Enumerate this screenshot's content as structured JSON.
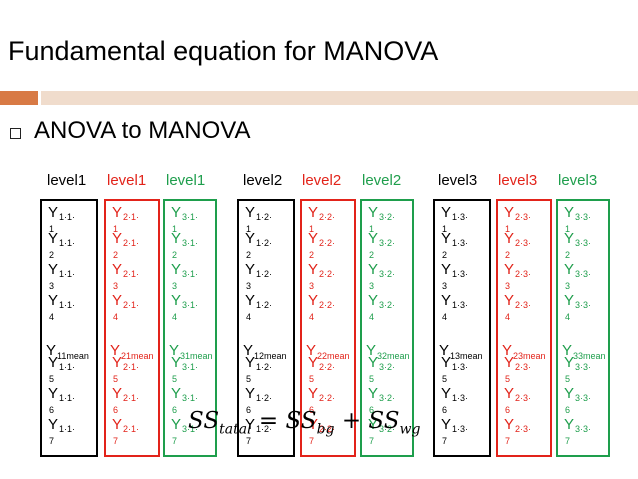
{
  "title": "Fundamental equation for MANOVA",
  "bullet": "ANOVA to MANOVA",
  "colors": {
    "black": "#000000",
    "red": "#e2231a",
    "green": "#1e9e4c",
    "accent_bar": "#d87a45",
    "light_bar": "#f0dccc"
  },
  "columns": [
    {
      "label": "level1",
      "color": "black",
      "y": "Y",
      "sub": "1·1·",
      "mean_sub": "11mean"
    },
    {
      "label": "level1",
      "color": "red",
      "y": "Y",
      "sub": "2·1·",
      "mean_sub": "21mean"
    },
    {
      "label": "level1",
      "color": "green",
      "y": "Y",
      "sub": "3·1·",
      "mean_sub": "31mean"
    },
    {
      "label": "level2",
      "color": "black",
      "y": "Y",
      "sub": "1·2·",
      "mean_sub": "12mean"
    },
    {
      "label": "level2",
      "color": "red",
      "y": "Y",
      "sub": "2·2·",
      "mean_sub": "22mean"
    },
    {
      "label": "level2",
      "color": "green",
      "y": "Y",
      "sub": "3·2·",
      "mean_sub": "32mean"
    },
    {
      "label": "level3",
      "color": "black",
      "y": "Y",
      "sub": "1·3·",
      "mean_sub": "13mean"
    },
    {
      "label": "level3",
      "color": "red",
      "y": "Y",
      "sub": "2·3·",
      "mean_sub": "23mean"
    },
    {
      "label": "level3",
      "color": "green",
      "y": "Y",
      "sub": "3·3·",
      "mean_sub": "33mean"
    }
  ],
  "row_indices": [
    "1",
    "2",
    "3",
    "4",
    "5",
    "6",
    "7"
  ],
  "equation": {
    "lhs": "SS",
    "lhs_sub": "tatal",
    "eq": "=",
    "t1": "SS",
    "t1_sub": "bg",
    "plus": "+",
    "t2": "SS",
    "t2_sub": "wg"
  }
}
